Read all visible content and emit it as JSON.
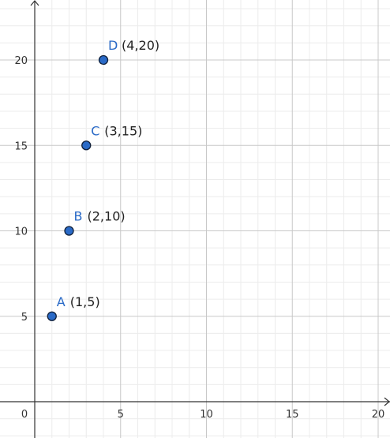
{
  "chart_data": {
    "type": "scatter",
    "title": "",
    "xlabel": "",
    "ylabel": "",
    "xlim": [
      -0.6,
      20.7
    ],
    "ylim": [
      -2.2,
      23.5
    ],
    "x_ticks": [
      0,
      5,
      10,
      15,
      20
    ],
    "y_ticks": [
      5,
      10,
      15,
      20
    ],
    "x_tick_labels": [
      "0",
      "5",
      "10",
      "15",
      "20"
    ],
    "y_tick_labels": [
      "5",
      "10",
      "15",
      "20"
    ],
    "grid": true,
    "minor_grid": true,
    "legend": "none",
    "points": [
      {
        "name": "A",
        "x": 1,
        "y": 5,
        "coord_label": "(1,5)"
      },
      {
        "name": "B",
        "x": 2,
        "y": 10,
        "coord_label": "(2,10)"
      },
      {
        "name": "C",
        "x": 3,
        "y": 15,
        "coord_label": "(3,15)"
      },
      {
        "name": "D",
        "x": 4,
        "y": 20,
        "coord_label": "(4,20)"
      }
    ]
  },
  "colors": {
    "point_fill": "#2a6ac7",
    "point_stroke": "#10203a",
    "point_label": "#2a6ac7",
    "major_grid": "#c8c8c8",
    "minor_grid": "#ececec",
    "axis": "#333333"
  }
}
